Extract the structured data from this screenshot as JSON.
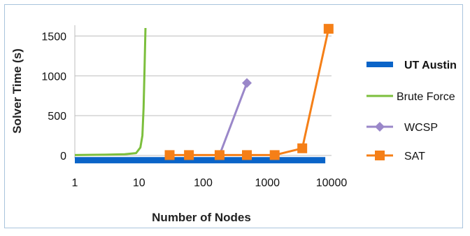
{
  "chart_data": {
    "type": "line",
    "title": "",
    "xlabel": "Number of Nodes",
    "ylabel": "Solver Time (s)",
    "x_scale": "log",
    "xlim": [
      1,
      10000
    ],
    "ylim": [
      0,
      1600
    ],
    "x_ticks": [
      1,
      10,
      100,
      1000,
      10000
    ],
    "x_tick_labels": [
      "1",
      "10",
      "100",
      "1000",
      "10000"
    ],
    "y_ticks": [
      0,
      500,
      1000,
      1500
    ],
    "y_tick_labels": [
      "0",
      "500",
      "1000",
      "1500"
    ],
    "grid": "horizontal",
    "legend_position": "right",
    "series": [
      {
        "name": "UT Austin",
        "color": "#0a64c8",
        "marker": "none",
        "points": [
          [
            1,
            -60
          ],
          [
            8000,
            -60
          ]
        ]
      },
      {
        "name": "Brute Force",
        "color": "#7cbf3d",
        "marker": "none",
        "points": [
          [
            1,
            5
          ],
          [
            3,
            10
          ],
          [
            6,
            15
          ],
          [
            9,
            30
          ],
          [
            10.5,
            100
          ],
          [
            11.3,
            250
          ],
          [
            11.8,
            600
          ],
          [
            12.2,
            1100
          ],
          [
            12.6,
            1600
          ]
        ]
      },
      {
        "name": "WCSP",
        "color": "#9a87c9",
        "marker": "diamond",
        "points": [
          [
            180,
            5
          ],
          [
            480,
            910
          ]
        ]
      },
      {
        "name": "SAT",
        "color": "#f57f17",
        "marker": "square",
        "points": [
          [
            30,
            5
          ],
          [
            60,
            5
          ],
          [
            180,
            5
          ],
          [
            480,
            5
          ],
          [
            1300,
            5
          ],
          [
            3500,
            90
          ],
          [
            9000,
            1590
          ]
        ]
      }
    ]
  }
}
